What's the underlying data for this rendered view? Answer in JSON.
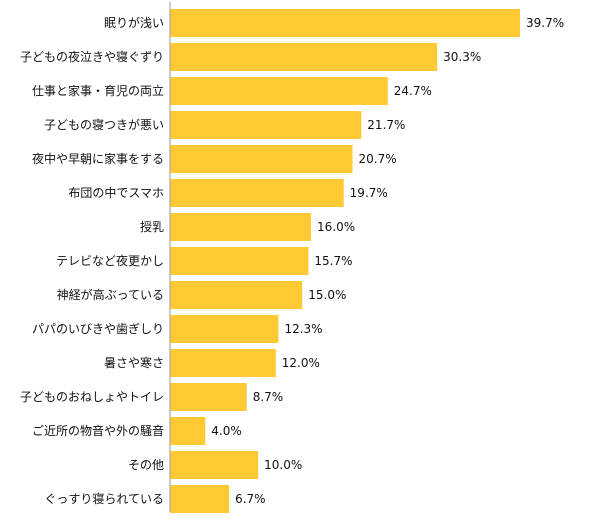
{
  "chart_data": {
    "type": "bar",
    "orientation": "horizontal",
    "categories": [
      "眠りが浅い",
      "子どもの夜泣きや寝ぐずり",
      "仕事と家事・育児の両立",
      "子どもの寝つきが悪い",
      "夜中や早朝に家事をする",
      "布団の中でスマホ",
      "授乳",
      "テレビなど夜更かし",
      "神経が高ぶっている",
      "パパのいびきや歯ぎしり",
      "暑さや寒さ",
      "子どものおねしょやトイレ",
      "ご近所の物音や外の騒音",
      "その他",
      "ぐっすり寝られている"
    ],
    "values": [
      39.7,
      30.3,
      24.7,
      21.7,
      20.7,
      19.7,
      16.0,
      15.7,
      15.0,
      12.3,
      12.0,
      8.7,
      4.0,
      10.0,
      6.7
    ],
    "value_labels": [
      "39.7%",
      "30.3%",
      "24.7%",
      "21.7%",
      "20.7%",
      "19.7%",
      "16.0%",
      "15.7%",
      "15.0%",
      "12.3%",
      "12.0%",
      "8.7%",
      "4.0%",
      "10.0%",
      "6.7%"
    ],
    "title": "",
    "xlabel": "",
    "ylabel": "",
    "xlim": [
      0,
      39.7
    ],
    "grid": false,
    "bar_color": "#FFC933",
    "axis_color": "#999999"
  }
}
